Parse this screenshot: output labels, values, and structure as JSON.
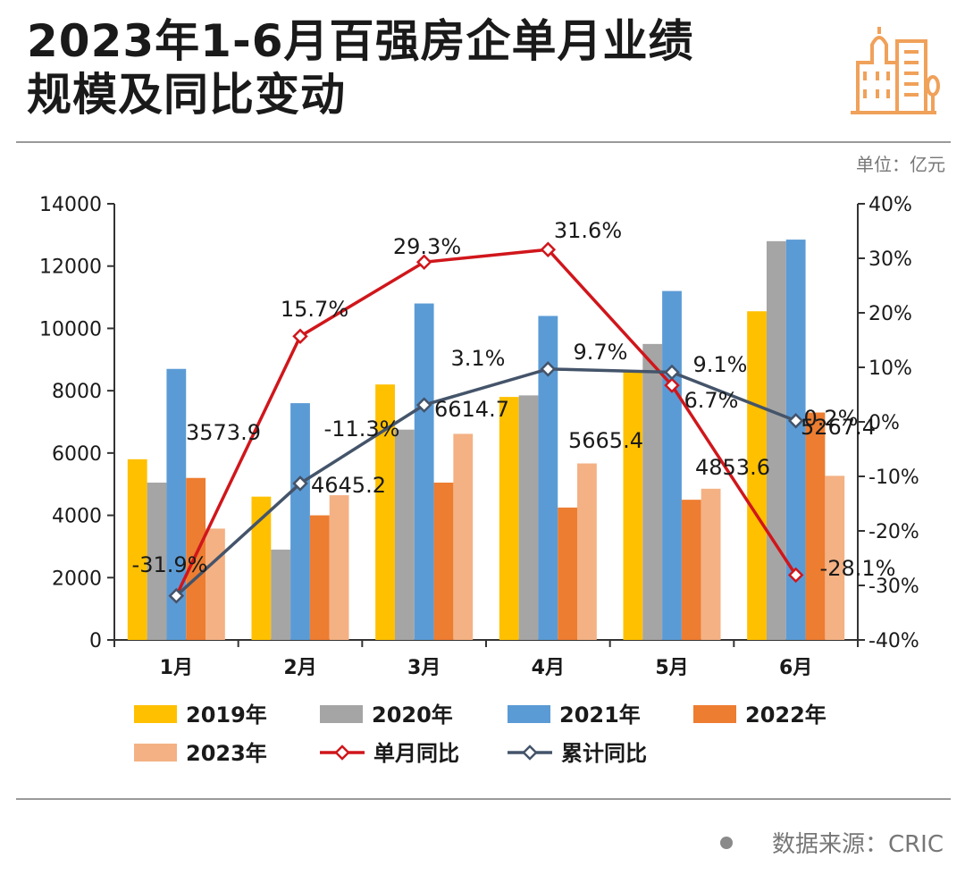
{
  "header": {
    "title_line1": "2023年1-6月百强房企单月业绩",
    "title_line2": "规模及同比变动",
    "unit": "单位：亿元",
    "logo_icon": "buildings-icon"
  },
  "footer": {
    "source": "数据来源：CRIC"
  },
  "colors": {
    "y2019": "#FFC000",
    "y2020": "#A5A5A5",
    "y2021": "#5B9BD5",
    "y2022": "#ED7D31",
    "y2023": "#F4B183",
    "monthly": "#D0161B",
    "cumulative": "#44546A",
    "logo": "#F0A15A"
  },
  "chart_data": {
    "type": "bar",
    "categories": [
      "1月",
      "2月",
      "3月",
      "4月",
      "5月",
      "6月"
    ],
    "ylim": [
      0,
      14000
    ],
    "y_ticks": [
      "0",
      "2000",
      "4000",
      "6000",
      "8000",
      "10000",
      "12000",
      "14000"
    ],
    "y2lim": [
      -40,
      40
    ],
    "y2_ticks": [
      "-40%",
      "-30%",
      "-20%",
      "-10%",
      "0%",
      "10%",
      "20%",
      "30%",
      "40%"
    ],
    "series": [
      {
        "name": "2019年",
        "color_key": "y2019",
        "values": [
          5800,
          4600,
          8200,
          7800,
          8600,
          10550
        ]
      },
      {
        "name": "2020年",
        "color_key": "y2020",
        "values": [
          5050,
          2900,
          6750,
          7850,
          9500,
          12800
        ]
      },
      {
        "name": "2021年",
        "color_key": "y2021",
        "values": [
          8700,
          7600,
          10800,
          10400,
          11200,
          12850
        ]
      },
      {
        "name": "2022年",
        "color_key": "y2022",
        "values": [
          5200,
          4000,
          5050,
          4250,
          4500,
          7300
        ]
      },
      {
        "name": "2023年",
        "color_key": "y2023",
        "values": [
          3573.9,
          4645.2,
          6614.7,
          5665.4,
          4853.6,
          5267.4
        ],
        "labels": [
          "3573.9",
          "4645.2",
          "6614.7",
          "5665.4",
          "4853.6",
          "5267.4"
        ]
      }
    ],
    "lines": [
      {
        "name": "单月同比",
        "color_key": "monthly",
        "values": [
          -31.9,
          15.7,
          29.3,
          31.6,
          6.7,
          -28.1
        ],
        "labels": [
          "-31.9%",
          "15.7%",
          "29.3%",
          "31.6%",
          "6.7%",
          "-28.1%"
        ]
      },
      {
        "name": "累计同比",
        "color_key": "cumulative",
        "values": [
          -31.9,
          -11.3,
          3.1,
          9.7,
          9.1,
          0.2
        ],
        "labels": [
          "-31.9%",
          "-11.3%",
          "3.1%",
          "9.7%",
          "9.1%",
          "0.2%"
        ]
      }
    ]
  }
}
